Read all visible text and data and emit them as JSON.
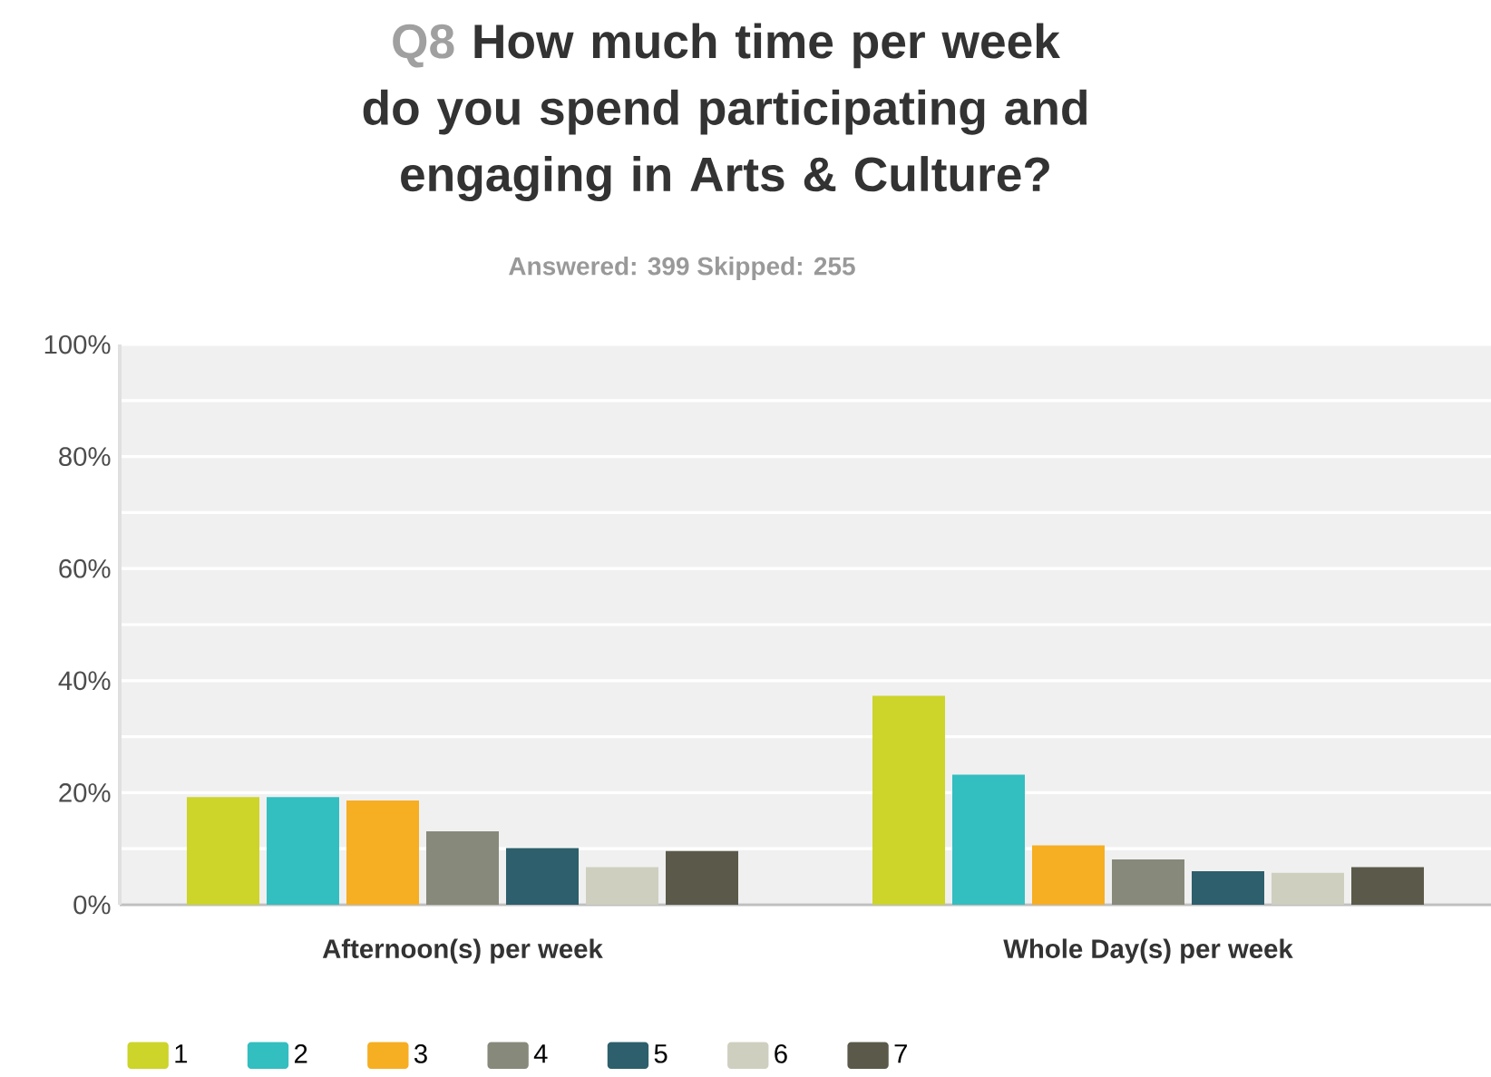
{
  "chart_data": {
    "type": "bar",
    "title": "How much time per week do you spend participating and engaging in Arts & Culture?",
    "subtitle": "Answered: 399    Skipped: 255",
    "annotations": [
      "Q8"
    ],
    "categories": [
      "Afternoon(s) per week",
      "Whole Day(s) per week"
    ],
    "series": [
      {
        "name": "1",
        "color": "#cdd42a",
        "values": [
          19.2,
          37.3
        ]
      },
      {
        "name": "2",
        "color": "#33bec0",
        "values": [
          19.2,
          23.2
        ]
      },
      {
        "name": "3",
        "color": "#f6ae22",
        "values": [
          18.6,
          10.6
        ]
      },
      {
        "name": "4",
        "color": "#87897a",
        "values": [
          13.1,
          8.1
        ]
      },
      {
        "name": "5",
        "color": "#2d5f6c",
        "values": [
          10.1,
          6.0
        ]
      },
      {
        "name": "6",
        "color": "#cfcfc0",
        "values": [
          6.7,
          5.7
        ]
      },
      {
        "name": "7",
        "color": "#5b5a4a",
        "values": [
          9.6,
          6.7
        ]
      }
    ],
    "ylim": [
      0,
      100
    ],
    "yticks": [
      {
        "value": 0,
        "label": "0%"
      },
      {
        "value": 20,
        "label": "20%"
      },
      {
        "value": 40,
        "label": "40%"
      },
      {
        "value": 60,
        "label": "60%"
      },
      {
        "value": 80,
        "label": "80%"
      },
      {
        "value": 100,
        "label": "100%"
      }
    ],
    "grid": "y",
    "legend": "bottom"
  }
}
